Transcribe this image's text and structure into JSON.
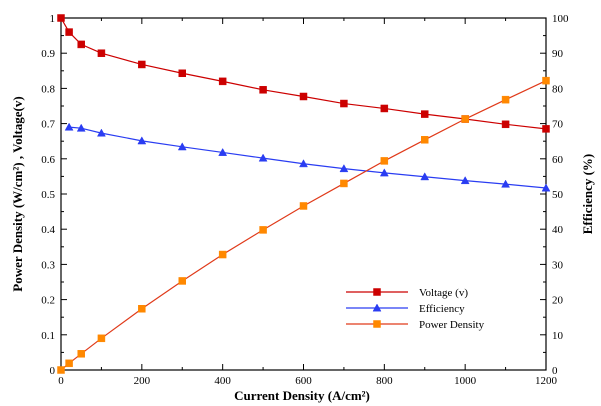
{
  "chart_data": {
    "type": "line",
    "xlabel": "Current Density (A/cm²)",
    "ylabel_left": "Power Density (W/cm²) , Voltage(v)",
    "ylabel_right": "Efficiency (%)",
    "xlim": [
      0,
      1200
    ],
    "ylim_left": [
      0,
      1
    ],
    "ylim_right": [
      0,
      100
    ],
    "x_ticks": [
      0,
      200,
      400,
      600,
      800,
      1000,
      1200
    ],
    "y_left_ticks": [
      0,
      0.1,
      0.2,
      0.3,
      0.4,
      0.5,
      0.6,
      0.7,
      0.8,
      0.9,
      1
    ],
    "y_right_ticks": [
      0,
      10,
      20,
      30,
      40,
      50,
      60,
      70,
      80,
      90,
      100
    ],
    "grid": false,
    "legend_position": "lower-right",
    "series": [
      {
        "name": "Voltage (v)",
        "axis": "left",
        "color": "#cc0000",
        "marker": "square",
        "x": [
          0,
          20,
          50,
          100,
          200,
          300,
          400,
          500,
          600,
          700,
          800,
          900,
          1000,
          1100,
          1200
        ],
        "y": [
          1.0,
          0.96,
          0.925,
          0.9,
          0.868,
          0.843,
          0.82,
          0.796,
          0.777,
          0.757,
          0.743,
          0.727,
          0.713,
          0.698,
          0.685
        ]
      },
      {
        "name": "Efficiency",
        "axis": "right",
        "color": "#2a3df2",
        "marker": "triangle",
        "x": [
          20,
          50,
          100,
          200,
          300,
          400,
          500,
          600,
          700,
          800,
          900,
          1000,
          1100,
          1200
        ],
        "y": [
          69,
          68.7,
          67.3,
          65.1,
          63.4,
          61.8,
          60.2,
          58.6,
          57.2,
          56.0,
          54.9,
          53.8,
          52.8,
          51.7
        ]
      },
      {
        "name": "Power Density",
        "axis": "left",
        "color": "#ff8800",
        "line_color": "#e03a1a",
        "marker": "square",
        "x": [
          0,
          20,
          50,
          100,
          200,
          300,
          400,
          500,
          600,
          700,
          800,
          900,
          1000,
          1100,
          1200
        ],
        "y": [
          0.0,
          0.019,
          0.046,
          0.09,
          0.174,
          0.253,
          0.328,
          0.398,
          0.466,
          0.53,
          0.594,
          0.654,
          0.713,
          0.768,
          0.822
        ]
      }
    ]
  }
}
